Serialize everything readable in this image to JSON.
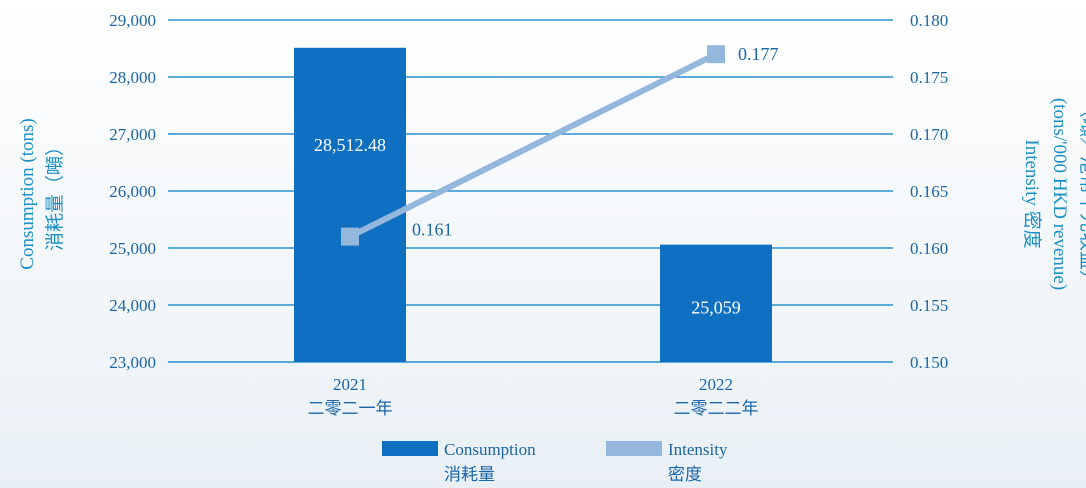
{
  "chart_data": {
    "type": "bar",
    "categories": [
      "2021",
      "2022"
    ],
    "categories_zh": [
      "二零二一年",
      "二零二二年"
    ],
    "series": [
      {
        "name": "Consumption",
        "name_zh": "消耗量",
        "type": "bar",
        "axis": "left",
        "values": [
          28512.48,
          25059
        ],
        "labels": [
          "28,512.48",
          "25,059"
        ]
      },
      {
        "name": "Intensity",
        "name_zh": "密度",
        "type": "line",
        "axis": "right",
        "values": [
          0.161,
          0.177
        ],
        "labels": [
          "0.161",
          "0.177"
        ]
      }
    ],
    "y_left": {
      "label": "Consumption (tons)",
      "label_zh": "消耗量（噸）",
      "ylim": [
        23000,
        29000
      ],
      "ticks": [
        23000,
        24000,
        25000,
        26000,
        27000,
        28000,
        29000
      ],
      "tick_labels": [
        "23,000",
        "24,000",
        "25,000",
        "26,000",
        "27,000",
        "28,000",
        "29,000"
      ]
    },
    "y_right": {
      "label": "Intensity 密度",
      "label_line2": "(tons/'000 HKD revenue)",
      "label_zh": "（噸／港幣千元收益）",
      "ylim": [
        0.15,
        0.18
      ],
      "ticks": [
        0.15,
        0.155,
        0.16,
        0.165,
        0.17,
        0.175,
        0.18
      ],
      "tick_labels": [
        "0.150",
        "0.155",
        "0.160",
        "0.165",
        "0.170",
        "0.175",
        "0.180"
      ]
    },
    "grid": true,
    "legend_position": "bottom-center",
    "colors": {
      "bar": "#0f6fc0",
      "line": "#93b7dd",
      "grid": "#2c8fd0",
      "text": "#1a66a8",
      "axis_title": "#1a8fc4"
    }
  }
}
